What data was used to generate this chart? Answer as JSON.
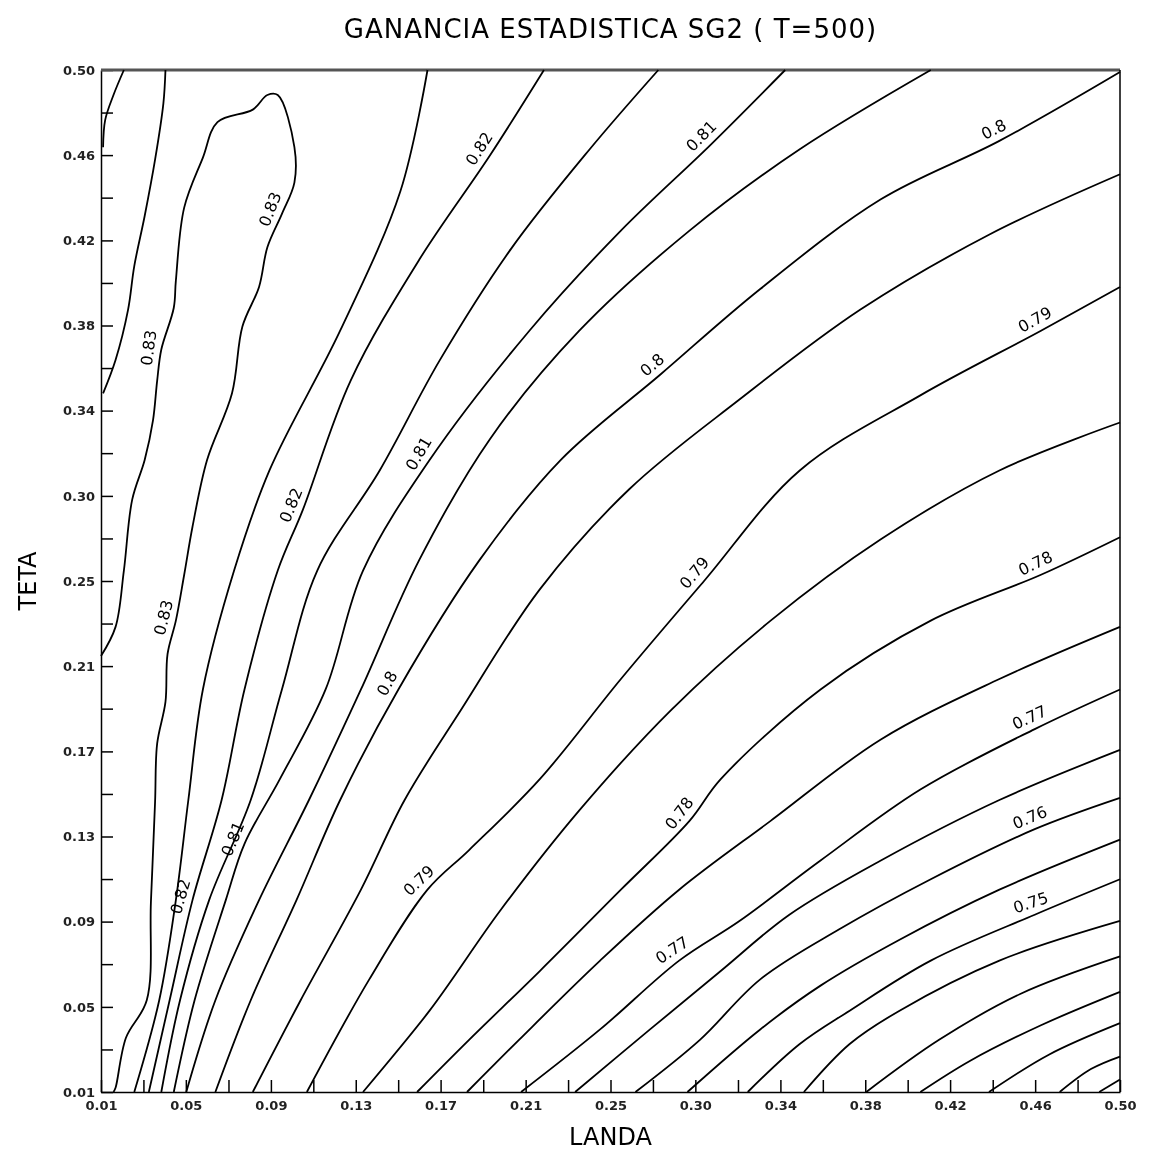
{
  "chart_data": {
    "type": "line",
    "title": "GANANCIA ESTADISTICA SG2 ( T=500)",
    "xlabel": "LANDA",
    "ylabel": "TETA",
    "xlim": [
      0.01,
      0.5
    ],
    "ylim": [
      0.01,
      0.5
    ],
    "xticks": [
      0.01,
      {
        "value": 0.0304,
        "label": null
      },
      {
        "value": 0.0508,
        "label": "0.05"
      },
      {
        "value": 0.0713,
        "label": null
      },
      {
        "value": 0.0917,
        "label": "0.09"
      },
      {
        "value": 0.1121,
        "label": null
      },
      {
        "value": 0.1325,
        "label": "0.13"
      },
      {
        "value": 0.1529,
        "label": null
      },
      {
        "value": 0.1733,
        "label": "0.17"
      },
      {
        "value": 0.1938,
        "label": null
      },
      {
        "value": 0.2142,
        "label": "0.21"
      },
      {
        "value": 0.2346,
        "label": null
      },
      {
        "value": 0.255,
        "label": "0.25"
      },
      {
        "value": 0.2754,
        "label": null
      },
      {
        "value": 0.2958,
        "label": "0.30"
      },
      {
        "value": 0.3163,
        "label": null
      },
      {
        "value": 0.3367,
        "label": "0.34"
      },
      {
        "value": 0.3571,
        "label": null
      },
      {
        "value": 0.3775,
        "label": "0.38"
      },
      {
        "value": 0.3979,
        "label": null
      },
      {
        "value": 0.4183,
        "label": "0.42"
      },
      {
        "value": 0.4388,
        "label": null
      },
      {
        "value": 0.4592,
        "label": "0.46"
      },
      {
        "value": 0.4796,
        "label": null
      },
      {
        "value": 0.5,
        "label": "0.50"
      }
    ],
    "yticks": [
      0.01,
      {
        "value": 0.0304,
        "label": null
      },
      {
        "value": 0.0508,
        "label": "0.05"
      },
      {
        "value": 0.0713,
        "label": null
      },
      {
        "value": 0.0917,
        "label": "0.09"
      },
      {
        "value": 0.1121,
        "label": null
      },
      {
        "value": 0.1325,
        "label": "0.13"
      },
      {
        "value": 0.1529,
        "label": null
      },
      {
        "value": 0.1733,
        "label": "0.17"
      },
      {
        "value": 0.1938,
        "label": null
      },
      {
        "value": 0.2142,
        "label": "0.21"
      },
      {
        "value": 0.2346,
        "label": null
      },
      {
        "value": 0.255,
        "label": "0.25"
      },
      {
        "value": 0.2754,
        "label": null
      },
      {
        "value": 0.2958,
        "label": "0.30"
      },
      {
        "value": 0.3163,
        "label": null
      },
      {
        "value": 0.3367,
        "label": "0.34"
      },
      {
        "value": 0.3571,
        "label": null
      },
      {
        "value": 0.3775,
        "label": "0.38"
      },
      {
        "value": 0.3979,
        "label": null
      },
      {
        "value": 0.4183,
        "label": "0.42"
      },
      {
        "value": 0.4388,
        "label": null
      },
      {
        "value": 0.4592,
        "label": "0.46"
      },
      {
        "value": 0.4796,
        "label": null
      },
      {
        "value": 0.5,
        "label": "0.50"
      }
    ],
    "series": [
      {
        "color": "#000000",
        "x": [
          0.021,
          0.016,
          0.012,
          0.011
        ],
        "values": [
          0.5,
          0.488,
          0.476,
          0.463
        ]
      },
      {
        "color": "#000000",
        "x": [
          0.041,
          0.04,
          0.036,
          0.031,
          0.026,
          0.023,
          0.017,
          0.011
        ],
        "values": [
          0.5,
          0.484,
          0.457,
          0.43,
          0.406,
          0.385,
          0.361,
          0.345
        ]
      },
      {
        "color": "#000000",
        "x": [
          0.01,
          0.017,
          0.021,
          0.025,
          0.031,
          0.035,
          0.037,
          0.039,
          0.045,
          0.046,
          0.05,
          0.059,
          0.066,
          0.083,
          0.09,
          0.095,
          0.103,
          0.103,
          0.097,
          0.09,
          0.086,
          0.078,
          0.073,
          0.061,
          0.054,
          0.05,
          0.046,
          0.042,
          0.041,
          0.037,
          0.036,
          0.034,
          0.032,
          0.022,
          0.017,
          0.016
        ],
        "values": [
          0.219,
          0.233,
          0.26,
          0.294,
          0.313,
          0.332,
          0.351,
          0.366,
          0.386,
          0.399,
          0.434,
          0.458,
          0.475,
          0.481,
          0.488,
          0.488,
          0.463,
          0.446,
          0.431,
          0.415,
          0.396,
          0.377,
          0.345,
          0.313,
          0.281,
          0.258,
          0.236,
          0.22,
          0.197,
          0.177,
          0.149,
          0.101,
          0.054,
          0.036,
          0.012,
          0.01
        ]
      },
      {
        "color": "#000000",
        "x": [
          0.167,
          0.154,
          0.125,
          0.091,
          0.074,
          0.059,
          0.052,
          0.046,
          0.038,
          0.026
        ],
        "values": [
          0.5,
          0.442,
          0.375,
          0.308,
          0.26,
          0.203,
          0.15,
          0.102,
          0.054,
          0.01
        ]
      },
      {
        "color": "#000000",
        "x": [
          0.223,
          0.197,
          0.163,
          0.13,
          0.107,
          0.095,
          0.079,
          0.068,
          0.054,
          0.043,
          0.033
        ],
        "values": [
          0.5,
          0.459,
          0.409,
          0.351,
          0.289,
          0.26,
          0.203,
          0.15,
          0.102,
          0.054,
          0.01
        ]
      },
      {
        "color": "#000000",
        "x": [
          0.278,
          0.245,
          0.207,
          0.173,
          0.144,
          0.114,
          0.097,
          0.082,
          0.062,
          0.048,
          0.039
        ],
        "values": [
          0.5,
          0.462,
          0.414,
          0.361,
          0.308,
          0.26,
          0.203,
          0.15,
          0.102,
          0.054,
          0.01
        ]
      },
      {
        "color": "#000000",
        "x": [
          0.339,
          0.303,
          0.26,
          0.216,
          0.168,
          0.136,
          0.118,
          0.096,
          0.079,
          0.07,
          0.055,
          0.045
        ],
        "values": [
          0.5,
          0.464,
          0.423,
          0.375,
          0.313,
          0.26,
          0.203,
          0.16,
          0.129,
          0.102,
          0.054,
          0.01
        ]
      },
      {
        "color": "#000000",
        "x": [
          0.409,
          0.346,
          0.293,
          0.24,
          0.197,
          0.163,
          0.135,
          0.11,
          0.086,
          0.065,
          0.051
        ],
        "values": [
          0.5,
          0.462,
          0.423,
          0.375,
          0.323,
          0.265,
          0.203,
          0.15,
          0.102,
          0.054,
          0.01
        ]
      },
      {
        "color": "#000000",
        "x": [
          0.5,
          0.442,
          0.385,
          0.327,
          0.279,
          0.231,
          0.192,
          0.153,
          0.125,
          0.104,
          0.082,
          0.065
        ],
        "values": [
          0.499,
          0.466,
          0.438,
          0.395,
          0.354,
          0.313,
          0.265,
          0.203,
          0.15,
          0.102,
          0.054,
          0.01
        ]
      },
      {
        "color": "#000000",
        "x": [
          0.5,
          0.437,
          0.375,
          0.317,
          0.264,
          0.221,
          0.183,
          0.156,
          0.135,
          0.106,
          0.083
        ],
        "values": [
          0.45,
          0.421,
          0.385,
          0.342,
          0.299,
          0.251,
          0.193,
          0.15,
          0.107,
          0.054,
          0.01
        ]
      },
      {
        "color": "#000000",
        "x": [
          0.5,
          0.462,
          0.404,
          0.346,
          0.3,
          0.26,
          0.221,
          0.187,
          0.167,
          0.139,
          0.109
        ],
        "values": [
          0.396,
          0.375,
          0.344,
          0.308,
          0.255,
          0.208,
          0.16,
          0.126,
          0.107,
          0.064,
          0.01
        ]
      },
      {
        "color": "#000000",
        "x": [
          0.5,
          0.442,
          0.385,
          0.332,
          0.284,
          0.24,
          0.202,
          0.168,
          0.136
        ],
        "values": [
          0.331,
          0.308,
          0.275,
          0.236,
          0.193,
          0.145,
          0.097,
          0.049,
          0.01
        ]
      },
      {
        "color": "#000000",
        "x": [
          0.5,
          0.462,
          0.409,
          0.356,
          0.308,
          0.293,
          0.26,
          0.221,
          0.187,
          0.162
        ],
        "values": [
          0.276,
          0.258,
          0.236,
          0.203,
          0.16,
          0.14,
          0.107,
          0.068,
          0.035,
          0.01
        ]
      },
      {
        "color": "#000000",
        "x": [
          0.5,
          0.442,
          0.385,
          0.332,
          0.288,
          0.25,
          0.211,
          0.186
        ],
        "values": [
          0.233,
          0.208,
          0.179,
          0.14,
          0.107,
          0.073,
          0.035,
          0.01
        ]
      },
      {
        "color": "#000000",
        "x": [
          0.5,
          0.459,
          0.404,
          0.356,
          0.317,
          0.288,
          0.25,
          0.212
        ],
        "values": [
          0.203,
          0.184,
          0.155,
          0.121,
          0.092,
          0.073,
          0.04,
          0.01
        ]
      },
      {
        "color": "#000000",
        "x": [
          0.5,
          0.442,
          0.385,
          0.341,
          0.308,
          0.274,
          0.238
        ],
        "values": [
          0.174,
          0.15,
          0.121,
          0.095,
          0.068,
          0.04,
          0.01
        ]
      },
      {
        "color": "#000000",
        "x": [
          0.5,
          0.459,
          0.409,
          0.365,
          0.327,
          0.298,
          0.267
        ],
        "values": [
          0.151,
          0.136,
          0.112,
          0.088,
          0.064,
          0.035,
          0.01
        ]
      },
      {
        "color": "#000000",
        "x": [
          0.5,
          0.442,
          0.394,
          0.356,
          0.327,
          0.292
        ],
        "values": [
          0.131,
          0.107,
          0.083,
          0.061,
          0.04,
          0.01
        ]
      },
      {
        "color": "#000000",
        "x": [
          0.5,
          0.459,
          0.409,
          0.37,
          0.346,
          0.321
        ],
        "values": [
          0.112,
          0.095,
          0.073,
          0.049,
          0.033,
          0.01
        ]
      },
      {
        "color": "#000000",
        "x": [
          0.5,
          0.442,
          0.394,
          0.37,
          0.348
        ],
        "values": [
          0.092,
          0.073,
          0.049,
          0.033,
          0.01
        ]
      },
      {
        "color": "#000000",
        "x": [
          0.5,
          0.452,
          0.413,
          0.378
        ],
        "values": [
          0.075,
          0.057,
          0.035,
          0.01
        ]
      },
      {
        "color": "#000000",
        "x": [
          0.5,
          0.462,
          0.428,
          0.404
        ],
        "values": [
          0.058,
          0.042,
          0.025,
          0.01
        ]
      },
      {
        "color": "#000000",
        "x": [
          0.5,
          0.466,
          0.437
        ],
        "values": [
          0.043,
          0.028,
          0.01
        ]
      },
      {
        "color": "#000000",
        "x": [
          0.5,
          0.486,
          0.471
        ],
        "values": [
          0.027,
          0.021,
          0.01
        ]
      },
      {
        "color": "#000000",
        "x": [
          0.5,
          0.49
        ],
        "values": [
          0.016,
          0.01
        ]
      }
    ],
    "annotations": [
      {
        "text": "0.83",
        "x": 0.039,
        "y": 0.366
      },
      {
        "text": "0.83",
        "x": 0.097,
        "y": 0.431
      },
      {
        "text": "0.83",
        "x": 0.046,
        "y": 0.236
      },
      {
        "text": "0.82",
        "x": 0.197,
        "y": 0.459
      },
      {
        "text": "0.82",
        "x": 0.107,
        "y": 0.289
      },
      {
        "text": "0.82",
        "x": 0.054,
        "y": 0.102
      },
      {
        "text": "0.81",
        "x": 0.303,
        "y": 0.464
      },
      {
        "text": "0.81",
        "x": 0.168,
        "y": 0.313
      },
      {
        "text": "0.81",
        "x": 0.079,
        "y": 0.129
      },
      {
        "text": "0.8",
        "x": 0.442,
        "y": 0.466
      },
      {
        "text": "0.8",
        "x": 0.279,
        "y": 0.354
      },
      {
        "text": "0.8",
        "x": 0.153,
        "y": 0.203
      },
      {
        "text": "0.79",
        "x": 0.462,
        "y": 0.375
      },
      {
        "text": "0.79",
        "x": 0.3,
        "y": 0.255
      },
      {
        "text": "0.79",
        "x": 0.167,
        "y": 0.107
      },
      {
        "text": "0.78",
        "x": 0.462,
        "y": 0.258
      },
      {
        "text": "0.78",
        "x": 0.293,
        "y": 0.14
      },
      {
        "text": "0.77",
        "x": 0.459,
        "y": 0.184
      },
      {
        "text": "0.77",
        "x": 0.288,
        "y": 0.073
      },
      {
        "text": "0.76",
        "x": 0.459,
        "y": 0.136
      },
      {
        "text": "0.75",
        "x": 0.459,
        "y": 0.095
      }
    ]
  }
}
